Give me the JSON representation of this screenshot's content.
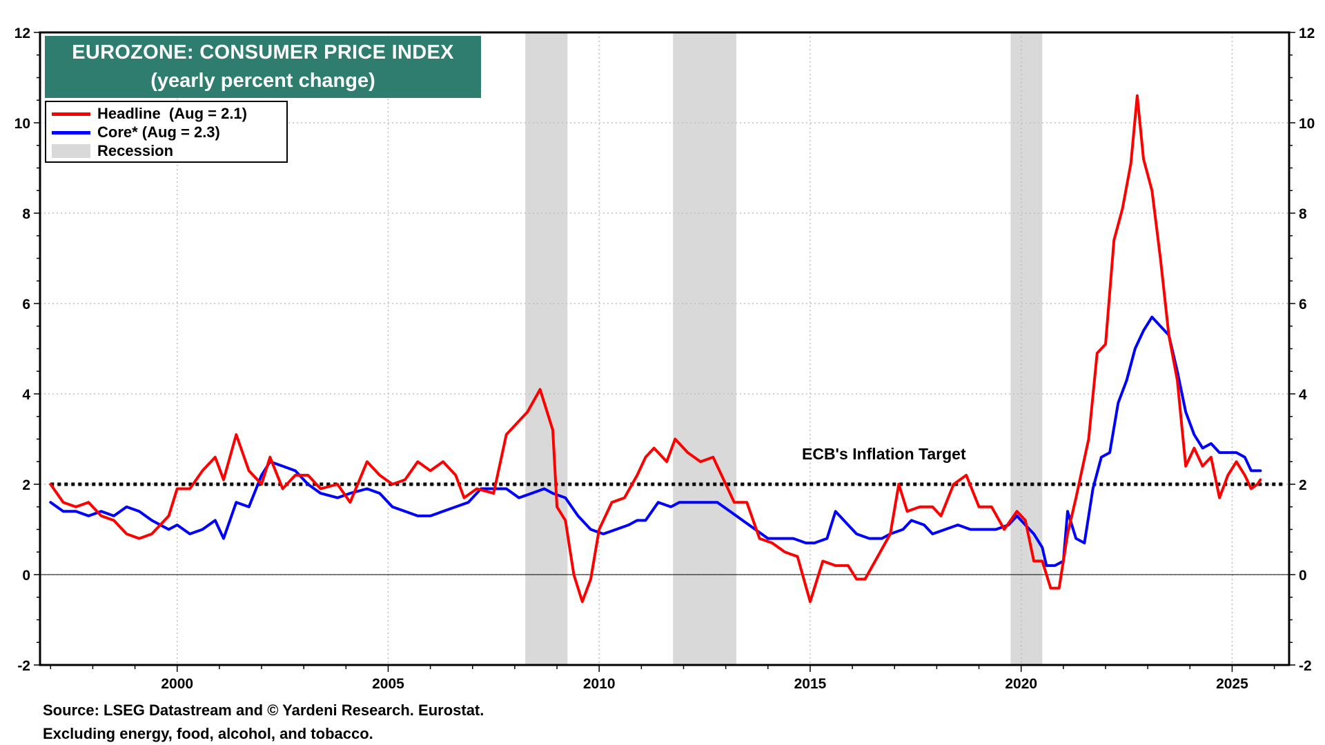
{
  "title": {
    "line1": "EUROZONE: CONSUMER PRICE INDEX",
    "line2": "(yearly percent change)"
  },
  "legend": {
    "headline": "Headline  (Aug = 2.1)",
    "core": "Core* (Aug = 2.3)",
    "recession": "Recession"
  },
  "annotation": {
    "target_label": "ECB's Inflation Target"
  },
  "source": {
    "line1": "Source: LSEG Datastream and © Yardeni Research. Eurostat.",
    "line2": "Excluding energy, food, alcohol, and tobacco."
  },
  "colors": {
    "headline": "#ff0000",
    "core": "#0000ff",
    "recession": "#d9d9d9",
    "title_bg": "#2e7d6e",
    "grid": "#bfbfbf"
  },
  "chart_data": {
    "type": "line",
    "xlim": [
      1996.75,
      2026.35
    ],
    "ylim": [
      -2,
      12
    ],
    "x_ticks": [
      2000,
      2005,
      2010,
      2015,
      2020,
      2025
    ],
    "y_ticks": [
      -2,
      0,
      2,
      4,
      6,
      8,
      10,
      12
    ],
    "grid": true,
    "legend_position": "top-left",
    "recessions": [
      [
        2008.25,
        2009.25
      ],
      [
        2011.75,
        2013.25
      ],
      [
        2019.75,
        2020.5
      ]
    ],
    "target_line": {
      "y": 2,
      "label": "ECB's Inflation Target"
    },
    "series": [
      {
        "name": "Headline",
        "color": "#ff0000",
        "points": [
          [
            1997.0,
            2.0
          ],
          [
            1997.3,
            1.6
          ],
          [
            1997.6,
            1.5
          ],
          [
            1997.9,
            1.6
          ],
          [
            1998.2,
            1.3
          ],
          [
            1998.5,
            1.2
          ],
          [
            1998.8,
            0.9
          ],
          [
            1999.1,
            0.8
          ],
          [
            1999.4,
            0.9
          ],
          [
            1999.8,
            1.3
          ],
          [
            2000.0,
            1.9
          ],
          [
            2000.3,
            1.9
          ],
          [
            2000.6,
            2.3
          ],
          [
            2000.9,
            2.6
          ],
          [
            2001.1,
            2.1
          ],
          [
            2001.4,
            3.1
          ],
          [
            2001.7,
            2.3
          ],
          [
            2002.0,
            2.0
          ],
          [
            2002.2,
            2.6
          ],
          [
            2002.5,
            1.9
          ],
          [
            2002.8,
            2.2
          ],
          [
            2003.1,
            2.2
          ],
          [
            2003.4,
            1.9
          ],
          [
            2003.8,
            2.0
          ],
          [
            2004.1,
            1.6
          ],
          [
            2004.5,
            2.5
          ],
          [
            2004.8,
            2.2
          ],
          [
            2005.1,
            2.0
          ],
          [
            2005.4,
            2.1
          ],
          [
            2005.7,
            2.5
          ],
          [
            2006.0,
            2.3
          ],
          [
            2006.3,
            2.5
          ],
          [
            2006.6,
            2.2
          ],
          [
            2006.8,
            1.7
          ],
          [
            2007.1,
            1.9
          ],
          [
            2007.5,
            1.8
          ],
          [
            2007.8,
            3.1
          ],
          [
            2008.1,
            3.4
          ],
          [
            2008.3,
            3.6
          ],
          [
            2008.6,
            4.1
          ],
          [
            2008.9,
            3.2
          ],
          [
            2009.0,
            1.5
          ],
          [
            2009.2,
            1.2
          ],
          [
            2009.4,
            0.0
          ],
          [
            2009.6,
            -0.6
          ],
          [
            2009.8,
            -0.1
          ],
          [
            2010.0,
            1.0
          ],
          [
            2010.3,
            1.6
          ],
          [
            2010.6,
            1.7
          ],
          [
            2010.9,
            2.2
          ],
          [
            2011.1,
            2.6
          ],
          [
            2011.3,
            2.8
          ],
          [
            2011.6,
            2.5
          ],
          [
            2011.8,
            3.0
          ],
          [
            2012.1,
            2.7
          ],
          [
            2012.4,
            2.5
          ],
          [
            2012.7,
            2.6
          ],
          [
            2012.9,
            2.2
          ],
          [
            2013.2,
            1.6
          ],
          [
            2013.5,
            1.6
          ],
          [
            2013.8,
            0.8
          ],
          [
            2014.1,
            0.7
          ],
          [
            2014.4,
            0.5
          ],
          [
            2014.7,
            0.4
          ],
          [
            2015.0,
            -0.6
          ],
          [
            2015.3,
            0.3
          ],
          [
            2015.6,
            0.2
          ],
          [
            2015.9,
            0.2
          ],
          [
            2016.1,
            -0.1
          ],
          [
            2016.3,
            -0.1
          ],
          [
            2016.6,
            0.4
          ],
          [
            2016.9,
            0.9
          ],
          [
            2017.1,
            2.0
          ],
          [
            2017.3,
            1.4
          ],
          [
            2017.6,
            1.5
          ],
          [
            2017.9,
            1.5
          ],
          [
            2018.1,
            1.3
          ],
          [
            2018.4,
            2.0
          ],
          [
            2018.7,
            2.2
          ],
          [
            2019.0,
            1.5
          ],
          [
            2019.3,
            1.5
          ],
          [
            2019.6,
            1.0
          ],
          [
            2019.9,
            1.4
          ],
          [
            2020.1,
            1.2
          ],
          [
            2020.3,
            0.3
          ],
          [
            2020.5,
            0.3
          ],
          [
            2020.7,
            -0.3
          ],
          [
            2020.9,
            -0.3
          ],
          [
            2021.1,
            0.9
          ],
          [
            2021.3,
            1.7
          ],
          [
            2021.6,
            3.0
          ],
          [
            2021.8,
            4.9
          ],
          [
            2022.0,
            5.1
          ],
          [
            2022.2,
            7.4
          ],
          [
            2022.4,
            8.1
          ],
          [
            2022.6,
            9.1
          ],
          [
            2022.75,
            10.6
          ],
          [
            2022.9,
            9.2
          ],
          [
            2023.1,
            8.5
          ],
          [
            2023.3,
            7.0
          ],
          [
            2023.5,
            5.3
          ],
          [
            2023.7,
            4.3
          ],
          [
            2023.9,
            2.4
          ],
          [
            2024.1,
            2.8
          ],
          [
            2024.3,
            2.4
          ],
          [
            2024.5,
            2.6
          ],
          [
            2024.7,
            1.7
          ],
          [
            2024.9,
            2.2
          ],
          [
            2025.1,
            2.5
          ],
          [
            2025.3,
            2.2
          ],
          [
            2025.45,
            1.9
          ],
          [
            2025.6,
            2.0
          ],
          [
            2025.67,
            2.1
          ]
        ]
      },
      {
        "name": "Core*",
        "color": "#0000ff",
        "points": [
          [
            1997.0,
            1.6
          ],
          [
            1997.3,
            1.4
          ],
          [
            1997.6,
            1.4
          ],
          [
            1997.9,
            1.3
          ],
          [
            1998.2,
            1.4
          ],
          [
            1998.5,
            1.3
          ],
          [
            1998.8,
            1.5
          ],
          [
            1999.1,
            1.4
          ],
          [
            1999.4,
            1.2
          ],
          [
            1999.8,
            1.0
          ],
          [
            2000.0,
            1.1
          ],
          [
            2000.3,
            0.9
          ],
          [
            2000.6,
            1.0
          ],
          [
            2000.9,
            1.2
          ],
          [
            2001.1,
            0.8
          ],
          [
            2001.4,
            1.6
          ],
          [
            2001.7,
            1.5
          ],
          [
            2002.0,
            2.2
          ],
          [
            2002.2,
            2.5
          ],
          [
            2002.5,
            2.4
          ],
          [
            2002.8,
            2.3
          ],
          [
            2003.1,
            2.0
          ],
          [
            2003.4,
            1.8
          ],
          [
            2003.8,
            1.7
          ],
          [
            2004.1,
            1.8
          ],
          [
            2004.5,
            1.9
          ],
          [
            2004.8,
            1.8
          ],
          [
            2005.1,
            1.5
          ],
          [
            2005.4,
            1.4
          ],
          [
            2005.7,
            1.3
          ],
          [
            2006.0,
            1.3
          ],
          [
            2006.3,
            1.4
          ],
          [
            2006.6,
            1.5
          ],
          [
            2006.9,
            1.6
          ],
          [
            2007.2,
            1.9
          ],
          [
            2007.5,
            1.9
          ],
          [
            2007.8,
            1.9
          ],
          [
            2008.1,
            1.7
          ],
          [
            2008.4,
            1.8
          ],
          [
            2008.7,
            1.9
          ],
          [
            2008.9,
            1.8
          ],
          [
            2009.2,
            1.7
          ],
          [
            2009.5,
            1.3
          ],
          [
            2009.8,
            1.0
          ],
          [
            2010.1,
            0.9
          ],
          [
            2010.4,
            1.0
          ],
          [
            2010.7,
            1.1
          ],
          [
            2010.9,
            1.2
          ],
          [
            2011.1,
            1.2
          ],
          [
            2011.4,
            1.6
          ],
          [
            2011.7,
            1.5
          ],
          [
            2011.9,
            1.6
          ],
          [
            2012.2,
            1.6
          ],
          [
            2012.5,
            1.6
          ],
          [
            2012.8,
            1.6
          ],
          [
            2013.1,
            1.4
          ],
          [
            2013.4,
            1.2
          ],
          [
            2013.7,
            1.0
          ],
          [
            2014.0,
            0.8
          ],
          [
            2014.3,
            0.8
          ],
          [
            2014.6,
            0.8
          ],
          [
            2014.9,
            0.7
          ],
          [
            2015.1,
            0.7
          ],
          [
            2015.4,
            0.8
          ],
          [
            2015.6,
            1.4
          ],
          [
            2015.9,
            1.1
          ],
          [
            2016.1,
            0.9
          ],
          [
            2016.4,
            0.8
          ],
          [
            2016.7,
            0.8
          ],
          [
            2016.9,
            0.9
          ],
          [
            2017.2,
            1.0
          ],
          [
            2017.4,
            1.2
          ],
          [
            2017.7,
            1.1
          ],
          [
            2017.9,
            0.9
          ],
          [
            2018.2,
            1.0
          ],
          [
            2018.5,
            1.1
          ],
          [
            2018.8,
            1.0
          ],
          [
            2019.1,
            1.0
          ],
          [
            2019.4,
            1.0
          ],
          [
            2019.7,
            1.1
          ],
          [
            2019.9,
            1.3
          ],
          [
            2020.1,
            1.1
          ],
          [
            2020.3,
            0.9
          ],
          [
            2020.5,
            0.6
          ],
          [
            2020.6,
            0.2
          ],
          [
            2020.8,
            0.2
          ],
          [
            2021.0,
            0.3
          ],
          [
            2021.1,
            1.4
          ],
          [
            2021.3,
            0.8
          ],
          [
            2021.5,
            0.7
          ],
          [
            2021.7,
            1.9
          ],
          [
            2021.9,
            2.6
          ],
          [
            2022.1,
            2.7
          ],
          [
            2022.3,
            3.8
          ],
          [
            2022.5,
            4.3
          ],
          [
            2022.7,
            5.0
          ],
          [
            2022.9,
            5.4
          ],
          [
            2023.1,
            5.7
          ],
          [
            2023.3,
            5.5
          ],
          [
            2023.5,
            5.3
          ],
          [
            2023.7,
            4.5
          ],
          [
            2023.9,
            3.6
          ],
          [
            2024.1,
            3.1
          ],
          [
            2024.3,
            2.8
          ],
          [
            2024.5,
            2.9
          ],
          [
            2024.7,
            2.7
          ],
          [
            2024.9,
            2.7
          ],
          [
            2025.1,
            2.7
          ],
          [
            2025.3,
            2.6
          ],
          [
            2025.45,
            2.3
          ],
          [
            2025.6,
            2.3
          ],
          [
            2025.67,
            2.3
          ]
        ]
      }
    ]
  }
}
